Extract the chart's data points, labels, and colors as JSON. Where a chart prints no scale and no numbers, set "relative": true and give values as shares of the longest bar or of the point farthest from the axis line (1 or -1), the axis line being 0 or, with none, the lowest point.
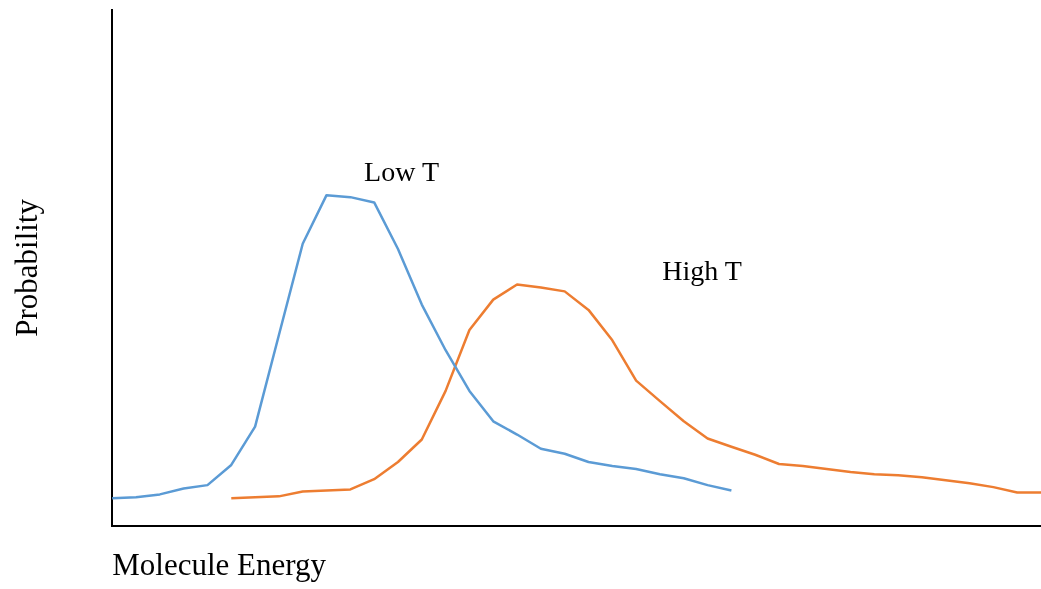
{
  "chart_data": {
    "type": "line",
    "relative": true,
    "xlabel": "Molecule Energy",
    "ylabel": "Probability",
    "legend": false,
    "grid": false,
    "marker": "none",
    "categories": [
      null,
      null,
      null,
      null,
      null,
      null,
      null,
      null,
      null,
      null,
      null,
      null,
      null,
      null,
      null,
      null,
      null,
      null,
      null,
      null,
      null,
      null,
      null,
      null,
      null,
      null,
      null,
      null,
      null,
      null,
      null,
      null,
      null,
      null,
      null,
      null,
      null,
      null,
      null,
      null
    ],
    "series": [
      {
        "name": "Low T",
        "color": "#5b9bd5",
        "values": [
          0.083,
          0.086,
          0.095,
          0.113,
          0.123,
          0.184,
          0.3,
          0.577,
          0.853,
          1,
          0.994,
          0.978,
          0.837,
          0.669,
          0.531,
          0.408,
          0.316,
          0.276,
          0.233,
          0.218,
          0.193,
          0.181,
          0.172,
          0.156,
          0.144,
          0.123,
          0.107,
          null,
          null,
          null,
          null,
          null,
          null,
          null,
          null,
          null,
          null,
          null,
          null,
          null
        ]
      },
      {
        "name": "High T",
        "color": "#ed7d31",
        "values": [
          null,
          null,
          null,
          null,
          null,
          0.083,
          0.086,
          0.089,
          0.104,
          0.107,
          0.11,
          0.141,
          0.193,
          0.261,
          0.408,
          0.592,
          0.684,
          0.73,
          0.721,
          0.709,
          0.653,
          0.561,
          0.439,
          0.377,
          0.316,
          0.264,
          0.239,
          0.215,
          0.187,
          0.181,
          0.172,
          0.163,
          0.156,
          0.153,
          0.147,
          0.138,
          0.129,
          0.117,
          0.101,
          0.101
        ]
      }
    ]
  }
}
